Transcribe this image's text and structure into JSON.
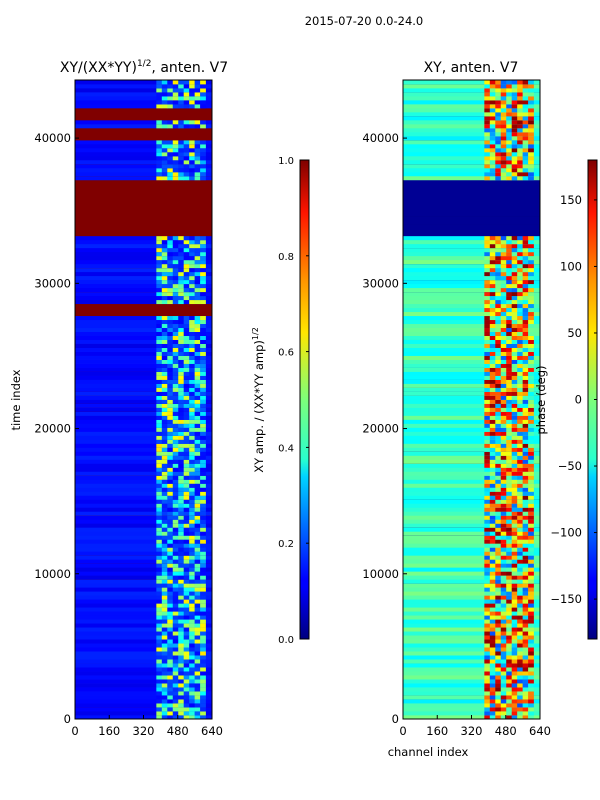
{
  "suptitle": "2015-07-20 0.0-24.0",
  "colormap": "jet",
  "chart_data": [
    {
      "type": "heatmap",
      "title_main": "XY/(XX*YY)",
      "title_exp": "1/2",
      "title_tail": ", anten. V7",
      "xlabel": "",
      "ylabel": "time index",
      "xlim": [
        0,
        640
      ],
      "ylim": [
        0,
        44000
      ],
      "xticks": [
        "0",
        "160",
        "320",
        "480",
        "640"
      ],
      "xtick_values": [
        0,
        160,
        320,
        480,
        640
      ],
      "yticks": [
        "0",
        "10000",
        "20000",
        "30000",
        "40000"
      ],
      "ytick_values": [
        0,
        10000,
        20000,
        30000,
        40000
      ],
      "active_channels": [
        380,
        610
      ],
      "saturated_time_bands": [
        [
          33200,
          37200
        ],
        [
          27700,
          28600
        ],
        [
          41300,
          42100
        ],
        [
          39900,
          40600
        ]
      ],
      "colorbar": {
        "label_main": "XY amp. / (XX*YY amp)",
        "label_exp": "1/2",
        "vmin": 0.0,
        "vmax": 1.0,
        "ticks": [
          "0.0",
          "0.2",
          "0.4",
          "0.6",
          "0.8",
          "1.0"
        ],
        "tick_values": [
          0.0,
          0.2,
          0.4,
          0.6,
          0.8,
          1.0
        ]
      }
    },
    {
      "type": "heatmap",
      "title": "XY, anten. V7",
      "xlabel": "channel index",
      "ylabel": "",
      "xlim": [
        0,
        640
      ],
      "ylim": [
        0,
        44000
      ],
      "xticks": [
        "0",
        "160",
        "320",
        "480",
        "640"
      ],
      "xtick_values": [
        0,
        160,
        320,
        480,
        640
      ],
      "yticks": [
        "0",
        "10000",
        "20000",
        "30000",
        "40000"
      ],
      "ytick_values": [
        0,
        10000,
        20000,
        30000,
        40000
      ],
      "active_channels": [
        380,
        610
      ],
      "dark_time_bands": [
        [
          33200,
          37200
        ]
      ],
      "colorbar": {
        "label": "phase (deg)",
        "vmin": -180,
        "vmax": 180,
        "ticks": [
          "−150",
          "−100",
          "−50",
          "0",
          "50",
          "100",
          "150"
        ],
        "tick_values": [
          -150,
          -100,
          -50,
          0,
          50,
          100,
          150
        ]
      }
    }
  ]
}
